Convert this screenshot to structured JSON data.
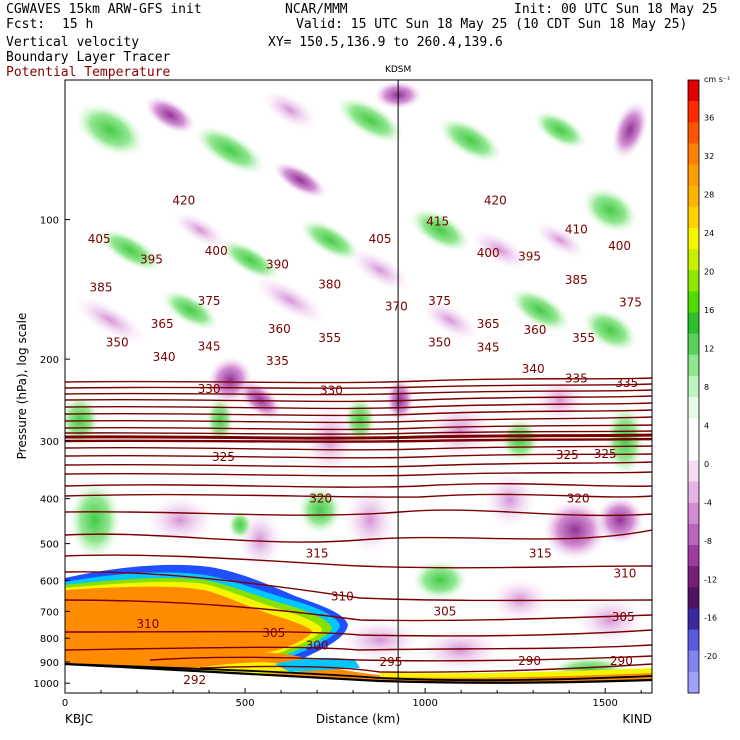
{
  "header": {
    "model": "CGWAVES 15km ARW-GFS init",
    "org": "NCAR/MMM",
    "init": "Init: 00 UTC Sun 18 May 25",
    "fcst_label": "Fcst:",
    "fcst_value": "15 h",
    "valid": "Valid: 15 UTC Sun 18 May 25 (10 CDT Sun 18 May 25)",
    "field1": "Vertical velocity",
    "field2": "Boundary Layer Tracer",
    "field3": "Potential Temperature",
    "xy": "XY= 150.5,136.9 to 260.4,139.6",
    "field3_color": "#8b0000"
  },
  "chart_data": {
    "type": "heatmap",
    "xlabel": "Distance (km)",
    "ylabel": "Pressure (hPa), log scale",
    "xlim": [
      0,
      1630
    ],
    "ylim": [
      1050,
      50
    ],
    "y_scale": "log",
    "x_ticks": [
      "0",
      "500",
      "1000",
      "1500"
    ],
    "y_ticks": [
      "100",
      "200",
      "300",
      "400",
      "500",
      "600",
      "700",
      "800",
      "900",
      "1000"
    ],
    "station_left": "KBJC",
    "station_right": "KIND",
    "station_mid": "KDSM",
    "station_mid_x": 925,
    "colorbar": {
      "unit": "cm s⁻¹",
      "tick_labels": [
        "36",
        "32",
        "28",
        "24",
        "20",
        "16",
        "12",
        "8",
        "4",
        "0",
        "-4",
        "-8",
        "-12",
        "-16",
        "-20"
      ],
      "colors": [
        "#e00000",
        "#ff2a00",
        "#ff5500",
        "#ff8000",
        "#ff9e00",
        "#ffb400",
        "#ffd200",
        "#f5f500",
        "#c8f000",
        "#8ce800",
        "#50dc00",
        "#2cc02c",
        "#5ad25a",
        "#8ee68e",
        "#bef5be",
        "#e6fae6",
        "#ffffff",
        "#ffffff",
        "#f5dcf5",
        "#e6b4e6",
        "#d28cd2",
        "#be64be",
        "#a03ca0",
        "#781e78",
        "#501464",
        "#3c28a0",
        "#5a5ae0",
        "#8282f0",
        "#a0a0ff"
      ]
    },
    "theta_labels": [
      {
        "text": "420",
        "x": 330,
        "p": 91
      },
      {
        "text": "405",
        "x": 95,
        "p": 110
      },
      {
        "text": "400",
        "x": 420,
        "p": 117
      },
      {
        "text": "395",
        "x": 240,
        "p": 122
      },
      {
        "text": "390",
        "x": 590,
        "p": 125
      },
      {
        "text": "385",
        "x": 100,
        "p": 140
      },
      {
        "text": "380",
        "x": 735,
        "p": 138
      },
      {
        "text": "375",
        "x": 400,
        "p": 150
      },
      {
        "text": "370",
        "x": 920,
        "p": 154
      },
      {
        "text": "365",
        "x": 270,
        "p": 168
      },
      {
        "text": "360",
        "x": 595,
        "p": 172
      },
      {
        "text": "355",
        "x": 735,
        "p": 180
      },
      {
        "text": "350",
        "x": 145,
        "p": 184
      },
      {
        "text": "345",
        "x": 400,
        "p": 188
      },
      {
        "text": "340",
        "x": 275,
        "p": 198
      },
      {
        "text": "335",
        "x": 590,
        "p": 202
      },
      {
        "text": "330",
        "x": 400,
        "p": 232
      },
      {
        "text": "330",
        "x": 740,
        "p": 234
      },
      {
        "text": "325",
        "x": 440,
        "p": 325
      },
      {
        "text": "320",
        "x": 710,
        "p": 400
      },
      {
        "text": "315",
        "x": 700,
        "p": 525
      },
      {
        "text": "310",
        "x": 770,
        "p": 650
      },
      {
        "text": "310",
        "x": 230,
        "p": 745
      },
      {
        "text": "305",
        "x": 580,
        "p": 780
      },
      {
        "text": "300",
        "x": 700,
        "p": 830
      },
      {
        "text": "292",
        "x": 360,
        "p": 985
      },
      {
        "text": "415",
        "x": 1035,
        "p": 101
      },
      {
        "text": "420",
        "x": 1195,
        "p": 91
      },
      {
        "text": "410",
        "x": 1420,
        "p": 105
      },
      {
        "text": "405",
        "x": 875,
        "p": 110
      },
      {
        "text": "400",
        "x": 1175,
        "p": 118
      },
      {
        "text": "395",
        "x": 1290,
        "p": 120
      },
      {
        "text": "400",
        "x": 1540,
        "p": 114
      },
      {
        "text": "385",
        "x": 1420,
        "p": 135
      },
      {
        "text": "375",
        "x": 1040,
        "p": 150
      },
      {
        "text": "375",
        "x": 1570,
        "p": 151
      },
      {
        "text": "365",
        "x": 1175,
        "p": 168
      },
      {
        "text": "360",
        "x": 1305,
        "p": 173
      },
      {
        "text": "355",
        "x": 1440,
        "p": 180
      },
      {
        "text": "350",
        "x": 1040,
        "p": 184
      },
      {
        "text": "345",
        "x": 1175,
        "p": 189
      },
      {
        "text": "340",
        "x": 1300,
        "p": 210
      },
      {
        "text": "335",
        "x": 1420,
        "p": 220
      },
      {
        "text": "335",
        "x": 1560,
        "p": 225
      },
      {
        "text": "325",
        "x": 1395,
        "p": 322
      },
      {
        "text": "325",
        "x": 1500,
        "p": 320
      },
      {
        "text": "320",
        "x": 1425,
        "p": 400
      },
      {
        "text": "315",
        "x": 1320,
        "p": 525
      },
      {
        "text": "310",
        "x": 1555,
        "p": 580
      },
      {
        "text": "305",
        "x": 1055,
        "p": 700
      },
      {
        "text": "305",
        "x": 1550,
        "p": 720
      },
      {
        "text": "295",
        "x": 905,
        "p": 900
      },
      {
        "text": "290",
        "x": 1290,
        "p": 895
      },
      {
        "text": "290",
        "x": 1545,
        "p": 895
      }
    ]
  }
}
